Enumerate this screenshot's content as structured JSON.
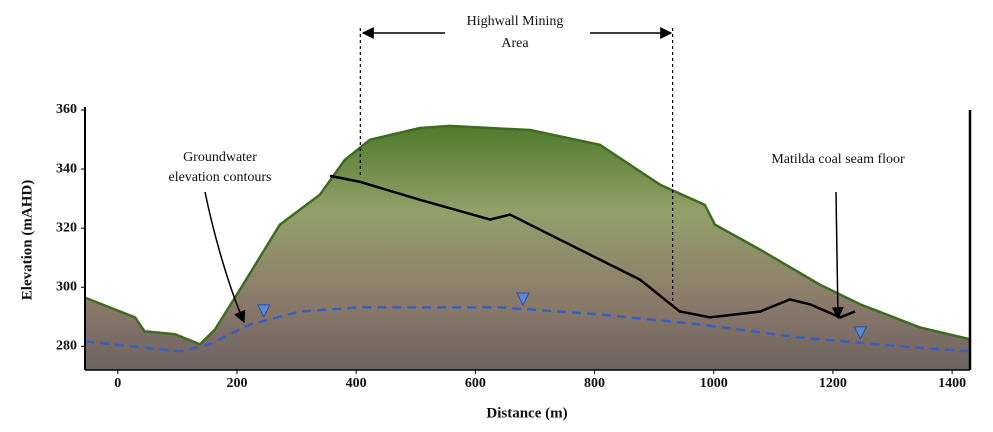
{
  "chart_data": {
    "type": "cross-section",
    "x_label": "Distance (m)",
    "y_label": "Elevation (mAHD)",
    "xlim": [
      -55,
      1430
    ],
    "ylim": [
      272,
      361
    ],
    "xticks": [
      0,
      200,
      400,
      600,
      800,
      1000,
      1200,
      1400
    ],
    "yticks": [
      280,
      300,
      320,
      340,
      360
    ],
    "series": [
      {
        "color": "#3f6b22",
        "x": [
          -55,
          29,
          45,
          96,
          138,
          163,
          205,
          272,
          339,
          381,
          423,
          507,
          557,
          692,
          809,
          910,
          985,
          1002,
          1078,
          1178,
          1246,
          1346,
          1430
        ],
        "values": [
          296.5,
          289.8,
          285.1,
          284.1,
          280.7,
          285.7,
          299.2,
          321.2,
          331.3,
          343.1,
          349.9,
          353.9,
          354.6,
          353.2,
          348.2,
          334.7,
          327.9,
          321.2,
          312.7,
          300.9,
          294.2,
          286.4,
          282.4
        ]
      },
      {
        "color": "#000000",
        "x": [
          356,
          406,
          507,
          625,
          658,
          742,
          876,
          943,
          994,
          1078,
          1128,
          1162,
          1212,
          1237
        ],
        "values": [
          337.7,
          335.7,
          329.6,
          322.9,
          324.6,
          316.1,
          302.6,
          291.8,
          289.8,
          291.8,
          295.9,
          294.2,
          289.8,
          291.8
        ]
      },
      {
        "color": "#3b5fc0",
        "x": [
          -55,
          104,
          154,
          222,
          306,
          406,
          641,
          809,
          977,
          1145,
          1313,
          1430
        ],
        "values": [
          281.7,
          278.3,
          280.7,
          287.4,
          291.8,
          293.2,
          293.2,
          290.8,
          287.4,
          283.0,
          280.0,
          278.3
        ]
      }
    ],
    "highwall_extent": [
      407,
      931
    ],
    "water_table_markers_x": [
      245,
      680,
      1246
    ],
    "annotations": {
      "highwall": [
        "Highwall Mining",
        "Area"
      ],
      "groundwater": [
        "Groundwater",
        "elevation contours"
      ],
      "coal": [
        "Matilda coal seam floor"
      ]
    }
  }
}
